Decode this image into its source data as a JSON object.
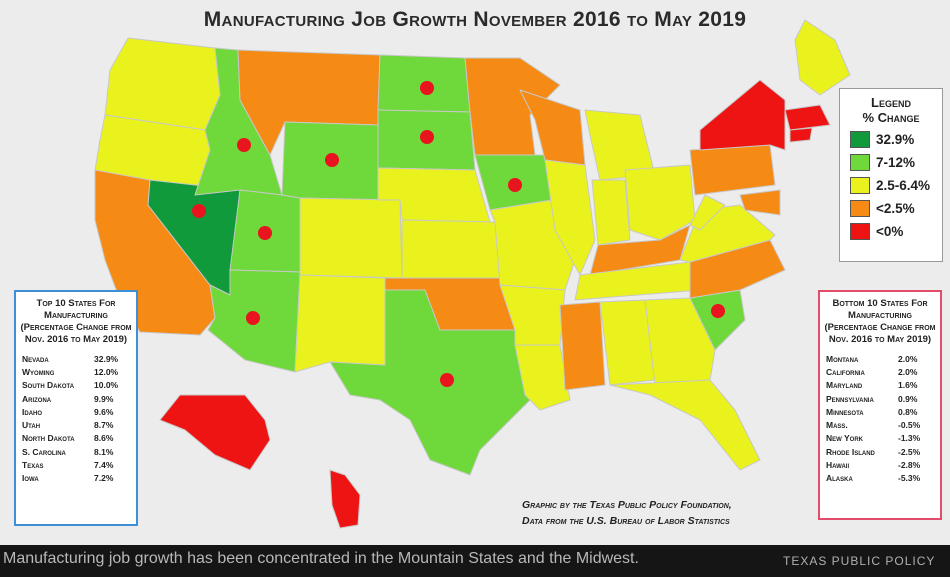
{
  "title": "Manufacturing Job Growth November 2016 to May 2019",
  "legend": {
    "title_line1": "Legend",
    "title_line2": "% Change",
    "items": [
      {
        "label": "32.9%",
        "color": "#109a3c"
      },
      {
        "label": "7-12%",
        "color": "#6fd83a"
      },
      {
        "label": "2.5-6.4%",
        "color": "#e9f21c"
      },
      {
        "label": "<2.5%",
        "color": "#f58a14"
      },
      {
        "label": "<0%",
        "color": "#ee1414"
      }
    ]
  },
  "top10": {
    "header": "Top 10 States For Manufacturing (Percentage Change from Nov. 2016 to May 2019)",
    "rows": [
      {
        "state": "Nevada",
        "value": "32.9%"
      },
      {
        "state": "Wyoming",
        "value": "12.0%"
      },
      {
        "state": "South Dakota",
        "value": "10.0%"
      },
      {
        "state": "Arizona",
        "value": "9.9%"
      },
      {
        "state": "Idaho",
        "value": "9.6%"
      },
      {
        "state": "Utah",
        "value": "8.7%"
      },
      {
        "state": "North Dakota",
        "value": "8.6%"
      },
      {
        "state": "S. Carolina",
        "value": "8.1%"
      },
      {
        "state": "Texas",
        "value": "7.4%"
      },
      {
        "state": "Iowa",
        "value": "7.2%"
      }
    ]
  },
  "bottom10": {
    "header": "Bottom 10 States For Manufacturing (Percentage Change from Nov. 2016 to May 2019)",
    "rows": [
      {
        "state": "Montana",
        "value": "2.0%"
      },
      {
        "state": "California",
        "value": "2.0%"
      },
      {
        "state": "Maryland",
        "value": "1.6%"
      },
      {
        "state": "Pennsylvania",
        "value": "0.9%"
      },
      {
        "state": "Minnesota",
        "value": "0.8%"
      },
      {
        "state": "Mass.",
        "value": "-0.5%"
      },
      {
        "state": "New York",
        "value": "-1.3%"
      },
      {
        "state": "Rhode Island",
        "value": "-2.5%"
      },
      {
        "state": "Hawaii",
        "value": "-2.8%"
      },
      {
        "state": "Alaska",
        "value": "-5.3%"
      }
    ]
  },
  "credit_line1": "Graphic by the Texas Public Policy Foundation,",
  "credit_line2": "Data from the U.S. Bureau of Labor Statistics",
  "caption": "Manufacturing job growth has been concentrated in the Mountain States and the Midwest.",
  "caption_source": "TEXAS PUBLIC POLICY",
  "map_fills": {
    "Washington": "yellow",
    "Oregon": "yellow",
    "California": "orange",
    "Nevada": "dark-green",
    "Idaho": "light-green",
    "Montana": "orange",
    "Wyoming": "light-green",
    "Utah": "light-green",
    "Arizona": "light-green",
    "Colorado": "yellow",
    "New Mexico": "yellow",
    "North Dakota": "light-green",
    "South Dakota": "light-green",
    "Nebraska": "yellow",
    "Kansas": "yellow",
    "Oklahoma": "orange",
    "Texas": "light-green",
    "Minnesota": "orange",
    "Iowa": "light-green",
    "Missouri": "yellow",
    "Arkansas": "yellow",
    "Louisiana": "yellow",
    "Wisconsin": "orange",
    "Illinois": "yellow",
    "Michigan": "yellow",
    "Indiana": "yellow",
    "Ohio": "yellow",
    "Kentucky": "orange",
    "Tennessee": "yellow",
    "Mississippi": "orange",
    "Alabama": "yellow",
    "Georgia": "yellow",
    "Florida": "yellow",
    "South Carolina": "light-green",
    "North Carolina": "orange",
    "Virginia": "yellow",
    "West Virginia": "yellow",
    "Pennsylvania": "orange",
    "New York": "red",
    "Maryland": "orange",
    "Massachusetts": "red",
    "Rhode Island": "red",
    "Maine": "yellow",
    "Alaska": "red",
    "Hawaii": "red"
  },
  "colors": {
    "dark-green": "#109a3c",
    "light-green": "#6fd83a",
    "yellow": "#e9f21c",
    "orange": "#f58a14",
    "red": "#ee1414"
  }
}
